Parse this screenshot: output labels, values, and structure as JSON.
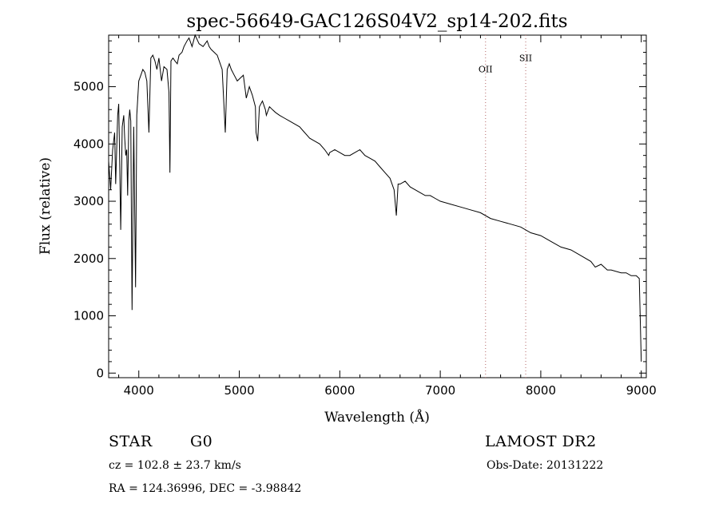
{
  "chart_data": {
    "type": "line",
    "title": "spec-56649-GAC126S04V2_sp14-202.fits",
    "xlabel": "Wavelength (Å)",
    "ylabel": "Flux (relative)",
    "xlim": [
      3700,
      9050
    ],
    "ylim": [
      -80,
      5900
    ],
    "xticks": [
      4000,
      5000,
      6000,
      7000,
      8000,
      9000
    ],
    "yticks": [
      0,
      1000,
      2000,
      3000,
      4000,
      5000
    ],
    "grid": false,
    "line_color": "#000000",
    "marker_color": "#c08080",
    "markers": [
      {
        "label": "OII",
        "x": 7450,
        "label_y": 5250
      },
      {
        "label": "SII",
        "x": 7850,
        "label_y": 5450
      }
    ],
    "series": [
      {
        "x": [
          3700,
          3720,
          3740,
          3760,
          3770,
          3790,
          3800,
          3810,
          3820,
          3835,
          3850,
          3860,
          3870,
          3880,
          3889,
          3900,
          3910,
          3920,
          3933,
          3950,
          3968,
          3980,
          4000,
          4020,
          4040,
          4060,
          4080,
          4101,
          4120,
          4140,
          4160,
          4180,
          4200,
          4226,
          4250,
          4280,
          4300,
          4310,
          4320,
          4340,
          4360,
          4383,
          4400,
          4430,
          4450,
          4480,
          4500,
          4530,
          4560,
          4600,
          4640,
          4680,
          4700,
          4720,
          4750,
          4780,
          4800,
          4830,
          4861,
          4880,
          4900,
          4920,
          4950,
          4980,
          5010,
          5040,
          5070,
          5100,
          5130,
          5160,
          5167,
          5183,
          5200,
          5230,
          5260,
          5269,
          5300,
          5330,
          5360,
          5400,
          5450,
          5500,
          5550,
          5600,
          5650,
          5700,
          5750,
          5800,
          5850,
          5890,
          5900,
          5950,
          6000,
          6050,
          6100,
          6150,
          6200,
          6250,
          6300,
          6350,
          6400,
          6450,
          6500,
          6540,
          6563,
          6580,
          6600,
          6650,
          6700,
          6750,
          6800,
          6850,
          6900,
          6950,
          7000,
          7100,
          7200,
          7300,
          7400,
          7500,
          7600,
          7700,
          7800,
          7900,
          8000,
          8100,
          8200,
          8300,
          8400,
          8498,
          8542,
          8600,
          8662,
          8700,
          8800,
          8850,
          8900,
          8950,
          8980,
          9000
        ],
        "y": [
          3700,
          3200,
          3900,
          4200,
          3300,
          4500,
          4700,
          3700,
          2500,
          4300,
          4500,
          4100,
          3800,
          3900,
          3100,
          4400,
          4600,
          4400,
          1100,
          4300,
          1500,
          4500,
          5100,
          5200,
          5300,
          5250,
          5100,
          4200,
          5500,
          5550,
          5450,
          5300,
          5500,
          5100,
          5350,
          5300,
          4900,
          3500,
          5450,
          5500,
          5450,
          5400,
          5550,
          5600,
          5700,
          5800,
          5850,
          5700,
          5900,
          5750,
          5700,
          5800,
          5700,
          5650,
          5600,
          5550,
          5450,
          5300,
          4200,
          5300,
          5400,
          5300,
          5200,
          5100,
          5150,
          5200,
          4800,
          5000,
          4850,
          4650,
          4200,
          4050,
          4650,
          4750,
          4600,
          4500,
          4650,
          4600,
          4550,
          4500,
          4450,
          4400,
          4350,
          4300,
          4200,
          4100,
          4050,
          4000,
          3900,
          3800,
          3850,
          3900,
          3850,
          3800,
          3800,
          3850,
          3900,
          3800,
          3750,
          3700,
          3600,
          3500,
          3400,
          3200,
          2750,
          3300,
          3300,
          3350,
          3250,
          3200,
          3150,
          3100,
          3100,
          3050,
          3000,
          2950,
          2900,
          2850,
          2800,
          2700,
          2650,
          2600,
          2550,
          2450,
          2400,
          2300,
          2200,
          2150,
          2050,
          1950,
          1850,
          1900,
          1800,
          1800,
          1750,
          1750,
          1700,
          1700,
          1650,
          200
        ]
      }
    ]
  },
  "info": {
    "object_class": "STAR",
    "subclass": "G0",
    "survey": "LAMOST DR2",
    "redshift": "cz = 102.8 ± 23.7 km/s",
    "obs_date": "Obs-Date: 20131222",
    "coords": "RA = 124.36996, DEC =  -3.98842"
  }
}
